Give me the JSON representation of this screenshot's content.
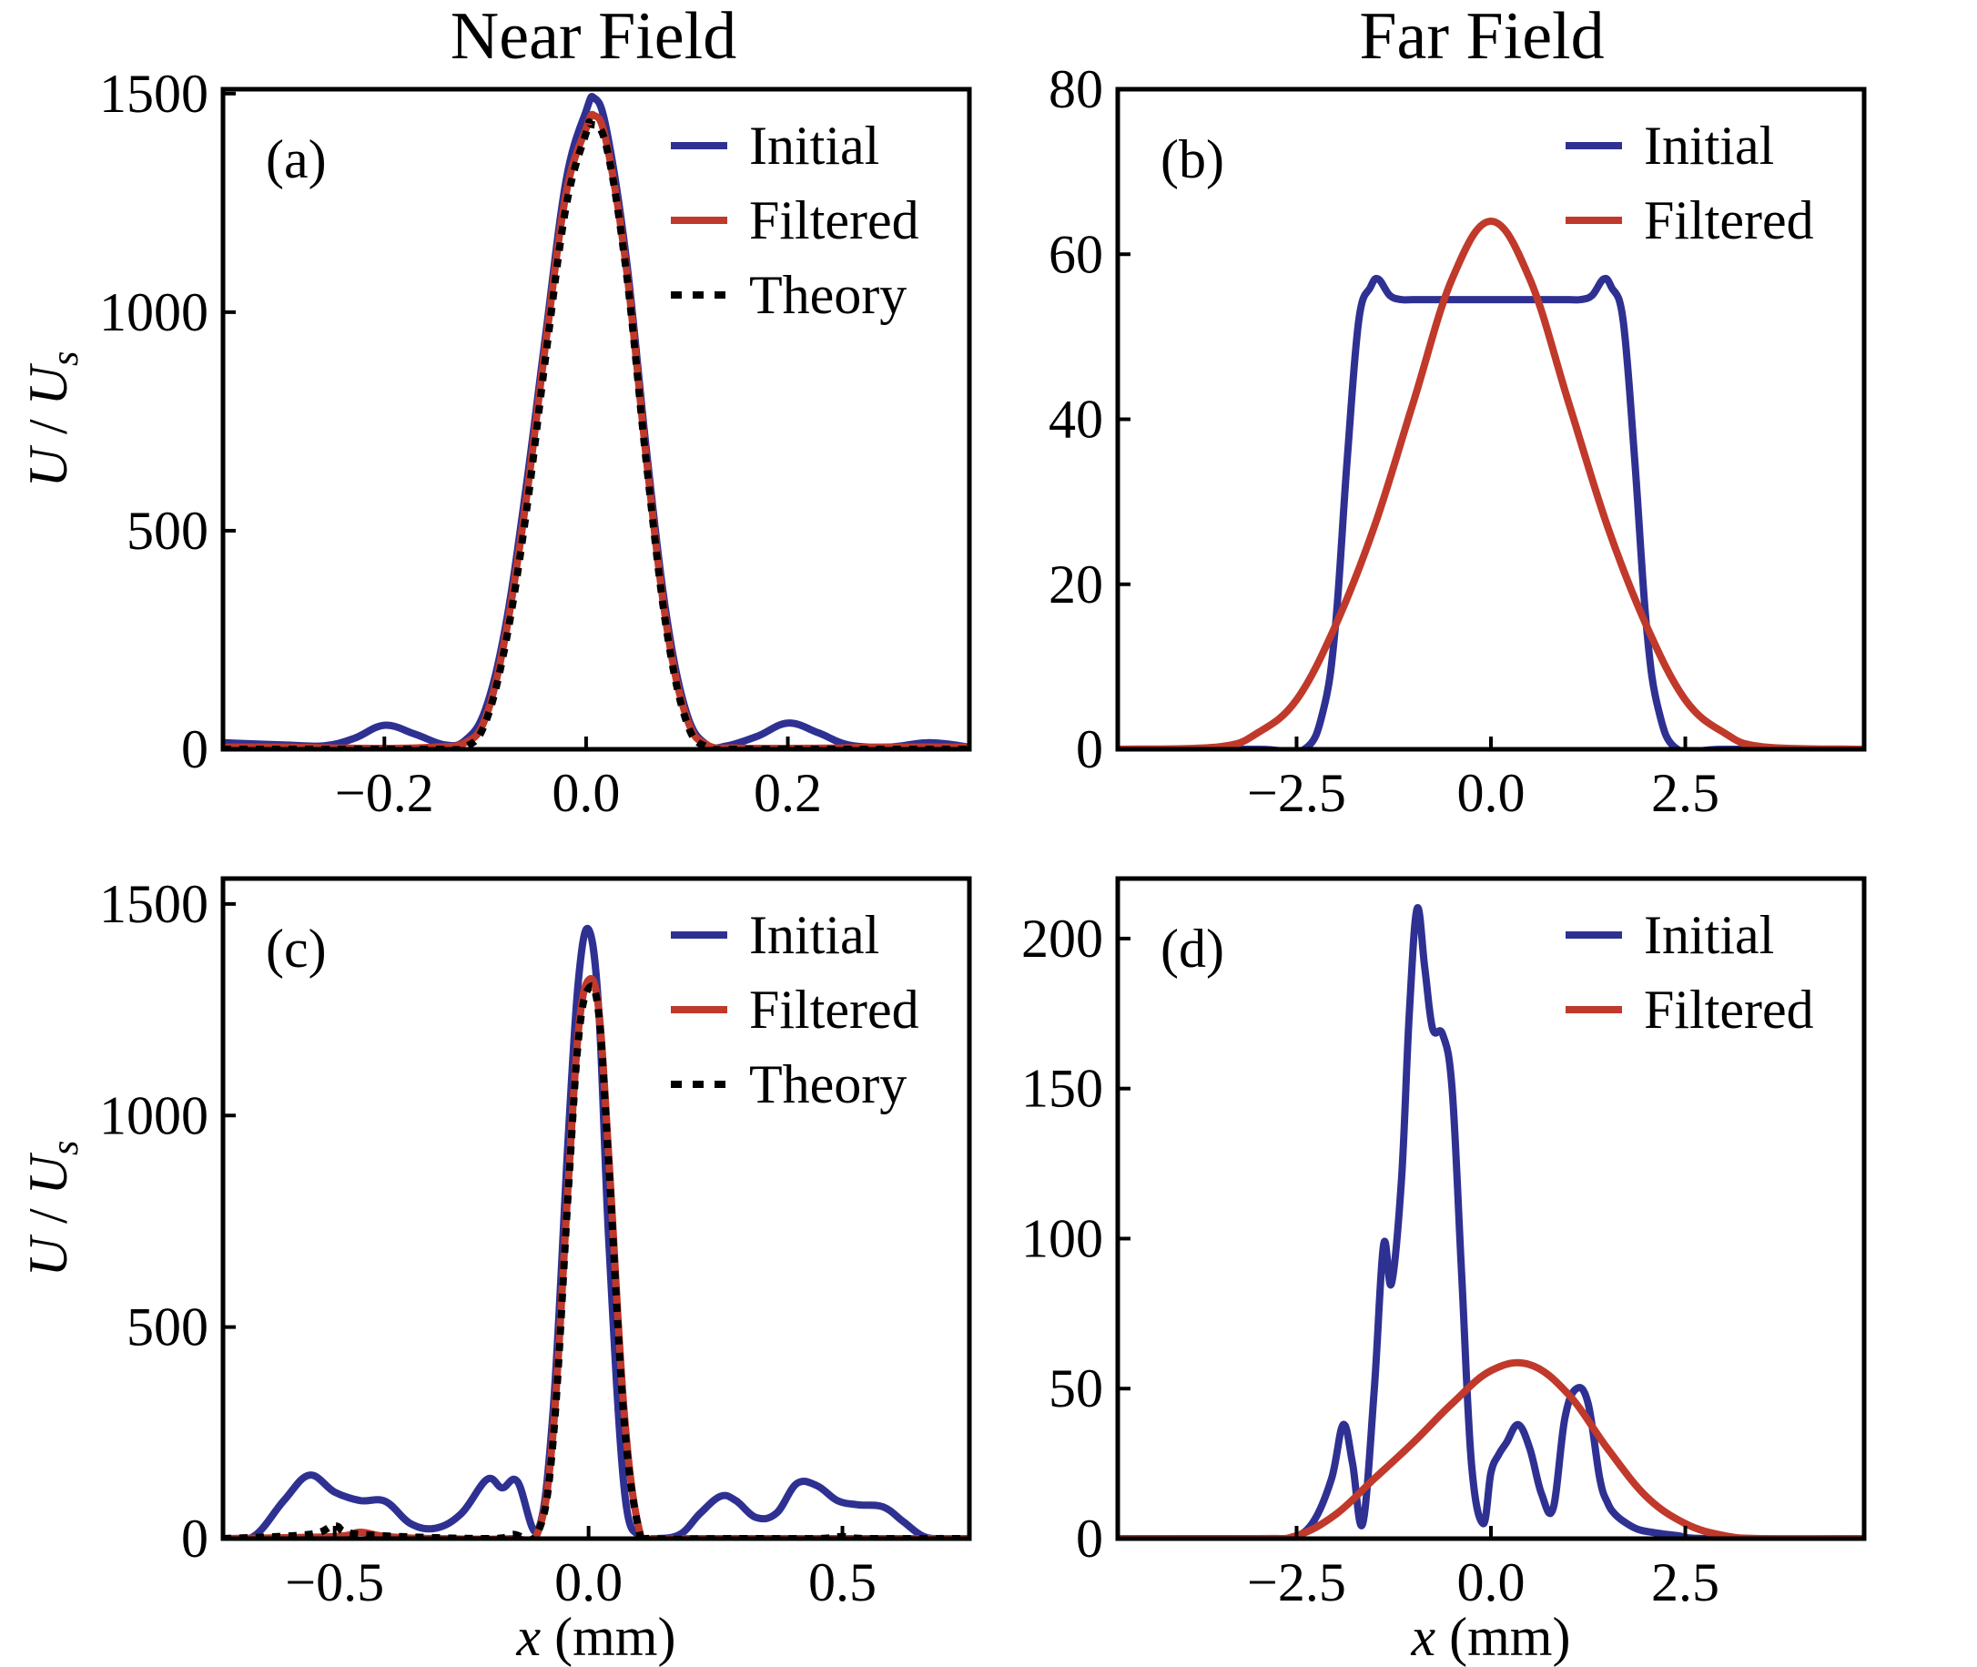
{
  "figure": {
    "column_titles": [
      "Near Field",
      "Far Field"
    ]
  },
  "colors": {
    "initial": "#2E3192",
    "filtered": "#C0392B",
    "theory": "#000000"
  },
  "chart_data": [
    {
      "id": "a",
      "type": "line",
      "panel_label": "(a)",
      "xlabel": "",
      "ylabel": "U / Us",
      "xlim": [
        -0.36,
        0.38
      ],
      "ylim": [
        0,
        1510
      ],
      "xticks": [
        -0.2,
        0.0,
        0.2
      ],
      "xtick_labels": [
        "−0.2",
        "0.0",
        "0.2"
      ],
      "yticks": [
        0,
        500,
        1000,
        1500
      ],
      "ytick_labels": [
        "0",
        "500",
        "1000",
        "1500"
      ],
      "legend": [
        "Initial",
        "Filtered",
        "Theory"
      ],
      "legend_position": "top-right",
      "series": [
        {
          "name": "Initial",
          "style": "solid",
          "x": [
            -0.36,
            -0.3,
            -0.26,
            -0.23,
            -0.2,
            -0.17,
            -0.14,
            -0.12,
            -0.1,
            -0.08,
            -0.06,
            -0.04,
            -0.02,
            0.0,
            0.008,
            0.02,
            0.04,
            0.06,
            0.08,
            0.1,
            0.12,
            0.14,
            0.17,
            0.2,
            0.23,
            0.26,
            0.3,
            0.34,
            0.38
          ],
          "values": [
            15,
            10,
            8,
            25,
            55,
            35,
            10,
            20,
            90,
            280,
            590,
            950,
            1300,
            1460,
            1490,
            1420,
            1120,
            680,
            300,
            80,
            10,
            8,
            30,
            60,
            38,
            10,
            5,
            15,
            5
          ]
        },
        {
          "name": "Filtered",
          "style": "solid",
          "x": [
            -0.36,
            -0.3,
            -0.25,
            -0.2,
            -0.15,
            -0.12,
            -0.1,
            -0.08,
            -0.06,
            -0.04,
            -0.02,
            0.0,
            0.008,
            0.02,
            0.04,
            0.06,
            0.08,
            0.1,
            0.12,
            0.15,
            0.2,
            0.25,
            0.3,
            0.38
          ],
          "values": [
            5,
            5,
            3,
            2,
            5,
            15,
            70,
            260,
            560,
            930,
            1270,
            1420,
            1450,
            1390,
            1100,
            660,
            280,
            70,
            10,
            3,
            2,
            3,
            5,
            5
          ]
        },
        {
          "name": "Theory",
          "style": "dotted",
          "x": [
            -0.36,
            -0.25,
            -0.15,
            -0.12,
            -0.1,
            -0.08,
            -0.06,
            -0.04,
            -0.02,
            0.0,
            0.005,
            0.02,
            0.04,
            0.06,
            0.08,
            0.1,
            0.12,
            0.15,
            0.25,
            0.38
          ],
          "values": [
            0,
            0,
            0,
            5,
            60,
            240,
            530,
            900,
            1240,
            1410,
            1430,
            1380,
            1090,
            650,
            270,
            60,
            5,
            0,
            0,
            0
          ]
        }
      ]
    },
    {
      "id": "b",
      "type": "line",
      "panel_label": "(b)",
      "xlabel": "",
      "ylabel": "",
      "xlim": [
        -4.8,
        4.8
      ],
      "ylim": [
        0,
        80
      ],
      "xticks": [
        -2.5,
        0.0,
        2.5
      ],
      "xtick_labels": [
        "−2.5",
        "0.0",
        "2.5"
      ],
      "yticks": [
        0,
        20,
        40,
        60,
        80
      ],
      "ytick_labels": [
        "0",
        "20",
        "40",
        "60",
        "80"
      ],
      "legend": [
        "Initial",
        "Filtered"
      ],
      "legend_position": "top-right",
      "series": [
        {
          "name": "Initial",
          "style": "solid",
          "x": [
            -4.8,
            -3.0,
            -2.4,
            -2.15,
            -2.0,
            -1.85,
            -1.7,
            -1.55,
            -1.45,
            -1.3,
            -1.15,
            -1.0,
            -0.5,
            0.0,
            0.5,
            1.0,
            1.15,
            1.3,
            1.45,
            1.55,
            1.7,
            1.85,
            2.0,
            2.15,
            2.4,
            3.0,
            4.8
          ],
          "values": [
            0,
            0,
            0,
            5,
            15,
            35,
            52,
            56,
            57,
            55,
            54.5,
            54.5,
            54.5,
            54.5,
            54.5,
            54.5,
            54.5,
            55,
            57,
            56,
            52,
            35,
            15,
            5,
            0,
            0,
            0
          ]
        },
        {
          "name": "Filtered",
          "style": "solid",
          "x": [
            -4.8,
            -3.5,
            -3.0,
            -2.5,
            -2.0,
            -1.5,
            -1.0,
            -0.5,
            0.0,
            0.5,
            1.0,
            1.5,
            2.0,
            2.5,
            3.0,
            3.5,
            4.8
          ],
          "values": [
            0,
            0.3,
            2,
            6,
            15,
            27,
            42,
            57,
            64,
            57,
            42,
            27,
            15,
            6,
            2,
            0.3,
            0
          ]
        }
      ]
    },
    {
      "id": "c",
      "type": "line",
      "panel_label": "(c)",
      "xlabel": "x (mm)",
      "ylabel": "U / Us",
      "xlim": [
        -0.72,
        0.75
      ],
      "ylim": [
        0,
        1560
      ],
      "xticks": [
        -0.5,
        0.0,
        0.5
      ],
      "xtick_labels": [
        "−0.5",
        "0.0",
        "0.5"
      ],
      "yticks": [
        0,
        500,
        1000,
        1500
      ],
      "ytick_labels": [
        "0",
        "500",
        "1000",
        "1500"
      ],
      "legend": [
        "Initial",
        "Filtered",
        "Theory"
      ],
      "legend_position": "top-right",
      "series": [
        {
          "name": "Initial",
          "style": "solid",
          "x": [
            -0.72,
            -0.66,
            -0.6,
            -0.55,
            -0.5,
            -0.45,
            -0.4,
            -0.35,
            -0.3,
            -0.25,
            -0.2,
            -0.17,
            -0.14,
            -0.1,
            -0.07,
            -0.04,
            -0.02,
            0.0,
            0.02,
            0.04,
            0.07,
            0.1,
            0.13,
            0.18,
            0.22,
            0.26,
            0.29,
            0.33,
            0.37,
            0.41,
            0.45,
            0.49,
            0.53,
            0.58,
            0.62,
            0.66,
            0.7,
            0.75
          ],
          "values": [
            0,
            5,
            90,
            150,
            110,
            90,
            88,
            35,
            25,
            60,
            140,
            120,
            135,
            20,
            300,
            950,
            1320,
            1440,
            1250,
            700,
            120,
            5,
            0,
            10,
            60,
            100,
            90,
            50,
            60,
            130,
            125,
            90,
            80,
            75,
            40,
            5,
            0,
            0
          ]
        },
        {
          "name": "Filtered",
          "style": "solid",
          "x": [
            -0.72,
            -0.5,
            -0.45,
            -0.4,
            -0.3,
            -0.15,
            -0.1,
            -0.07,
            -0.04,
            -0.02,
            0.0,
            0.02,
            0.04,
            0.07,
            0.1,
            0.13,
            0.2,
            0.4,
            0.75
          ],
          "values": [
            0,
            5,
            15,
            5,
            0,
            0,
            15,
            250,
            840,
            1200,
            1320,
            1250,
            900,
            300,
            20,
            0,
            0,
            0,
            0
          ]
        },
        {
          "name": "Theory",
          "style": "dotted",
          "x": [
            -0.72,
            -0.55,
            -0.5,
            -0.45,
            -0.2,
            -0.15,
            -0.1,
            -0.07,
            -0.04,
            -0.02,
            0.0,
            0.02,
            0.04,
            0.07,
            0.1,
            0.12,
            0.3,
            0.45,
            0.5,
            0.55,
            0.75
          ],
          "values": [
            0,
            10,
            30,
            10,
            0,
            10,
            15,
            230,
            820,
            1180,
            1300,
            1240,
            880,
            280,
            15,
            0,
            0,
            0,
            5,
            0,
            0
          ]
        }
      ]
    },
    {
      "id": "d",
      "type": "line",
      "panel_label": "(d)",
      "xlabel": "x (mm)",
      "ylabel": "",
      "xlim": [
        -4.8,
        4.8
      ],
      "ylim": [
        0,
        220
      ],
      "xticks": [
        -2.5,
        0.0,
        2.5
      ],
      "xtick_labels": [
        "−2.5",
        "0.0",
        "2.5"
      ],
      "yticks": [
        0,
        50,
        100,
        150,
        200
      ],
      "ytick_labels": [
        "0",
        "50",
        "100",
        "150",
        "200"
      ],
      "legend": [
        "Initial",
        "Filtered"
      ],
      "legend_position": "top-right",
      "series": [
        {
          "name": "Initial",
          "style": "solid",
          "x": [
            -4.8,
            -3.0,
            -2.6,
            -2.3,
            -2.05,
            -1.9,
            -1.78,
            -1.65,
            -1.5,
            -1.38,
            -1.28,
            -1.15,
            -1.05,
            -0.95,
            -0.85,
            -0.75,
            -0.62,
            -0.5,
            -0.38,
            -0.25,
            -0.1,
            0.0,
            0.1,
            0.2,
            0.35,
            0.5,
            0.65,
            0.8,
            0.95,
            1.1,
            1.25,
            1.4,
            1.5,
            1.6,
            1.75,
            1.9,
            2.1,
            2.4,
            2.8,
            4.8
          ],
          "values": [
            0,
            0,
            0,
            5,
            20,
            38,
            25,
            5,
            50,
            98,
            85,
            120,
            175,
            210,
            190,
            170,
            168,
            150,
            90,
            25,
            5,
            22,
            28,
            32,
            38,
            30,
            15,
            10,
            40,
            50,
            45,
            20,
            12,
            8,
            5,
            3,
            2,
            1,
            0,
            0
          ]
        },
        {
          "name": "Filtered",
          "style": "solid",
          "x": [
            -4.8,
            -3.0,
            -2.5,
            -2.0,
            -1.5,
            -1.0,
            -0.5,
            0.0,
            0.5,
            1.0,
            1.5,
            2.0,
            2.5,
            3.0,
            3.5,
            4.8
          ],
          "values": [
            0,
            0,
            1,
            8,
            20,
            32,
            45,
            56,
            58,
            48,
            30,
            14,
            5,
            1,
            0,
            0
          ]
        }
      ]
    }
  ]
}
